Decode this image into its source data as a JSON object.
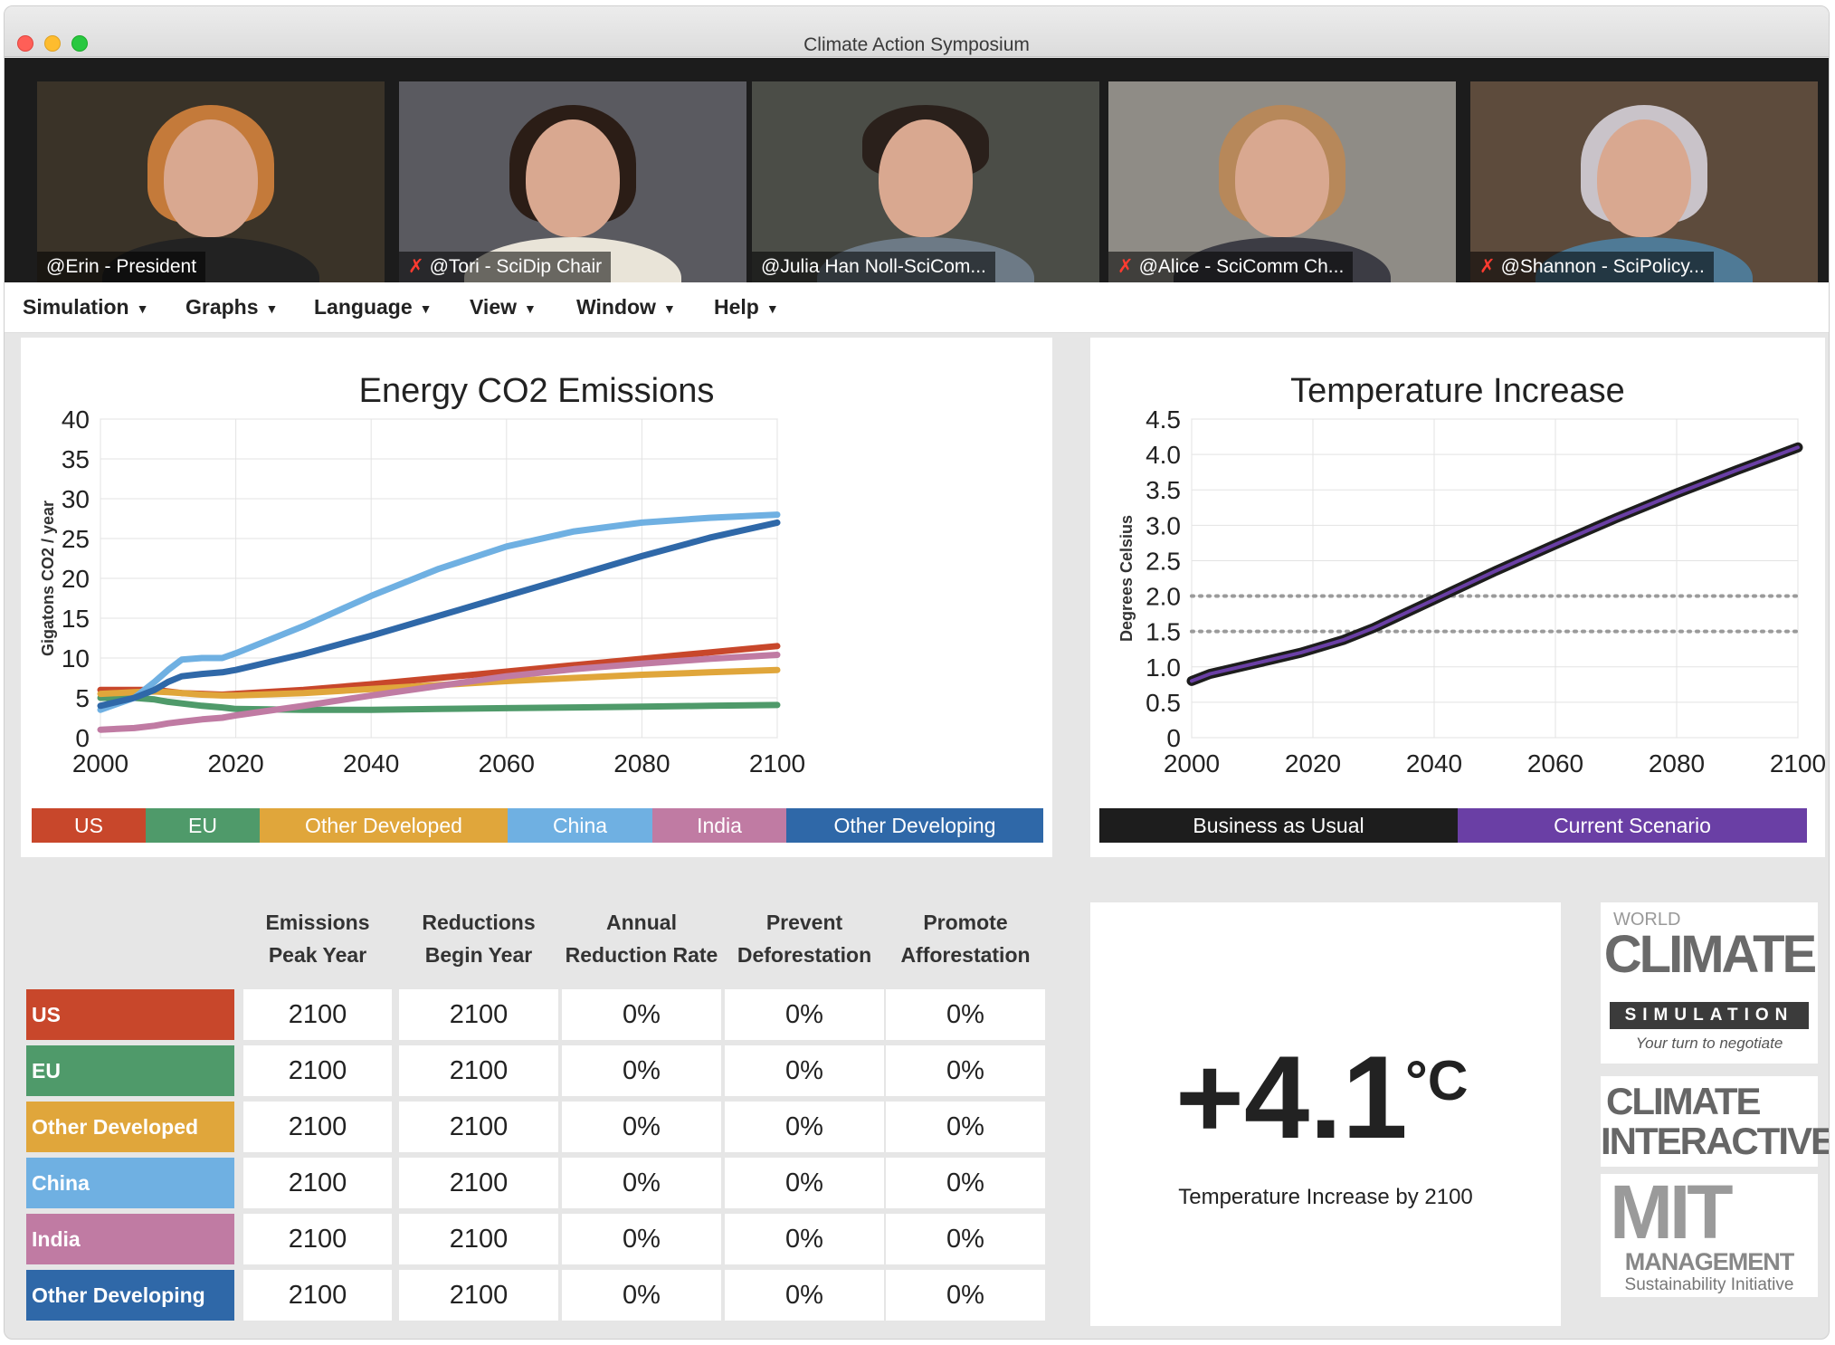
{
  "window": {
    "title": "Climate Action Symposium"
  },
  "participants": [
    {
      "label": "@Erin -  President",
      "muted": false
    },
    {
      "label": "@Tori - SciDip Chair",
      "muted": true
    },
    {
      "label": "@Julia Han Noll-SciCom...",
      "muted": false
    },
    {
      "label": "@Alice - SciComm Ch...",
      "muted": true
    },
    {
      "label": "@Shannon - SciPolicy...",
      "muted": true
    }
  ],
  "menu": [
    "Simulation",
    "Graphs",
    "Language",
    "View",
    "Window",
    "Help"
  ],
  "emissions_legend": [
    {
      "label": "US",
      "color": "#c8472b"
    },
    {
      "label": "EU",
      "color": "#4f9a6a"
    },
    {
      "label": "Other Developed",
      "color": "#e0a63b"
    },
    {
      "label": "China",
      "color": "#6fb0e2"
    },
    {
      "label": "India",
      "color": "#c07ba3"
    },
    {
      "label": "Other Developing",
      "color": "#2f68a8"
    }
  ],
  "temperature_legend": [
    {
      "label": "Business as Usual",
      "color": "#1d1d1d"
    },
    {
      "label": "Current Scenario",
      "color": "#6a3fa5"
    }
  ],
  "chart_data": [
    {
      "type": "line",
      "title": "Energy CO2 Emissions",
      "xlabel": "",
      "ylabel": "Gigatons CO2 / year",
      "xlim": [
        2000,
        2100
      ],
      "ylim": [
        0,
        40
      ],
      "xticks": [
        "2000",
        "2020",
        "2040",
        "2060",
        "2080",
        "2100"
      ],
      "yticks": [
        "0",
        "5",
        "10",
        "15",
        "20",
        "25",
        "30",
        "35",
        "40"
      ],
      "grid": true,
      "legend": "bottom",
      "x": [
        2000,
        2005,
        2008,
        2010,
        2012,
        2015,
        2018,
        2020,
        2030,
        2040,
        2050,
        2060,
        2070,
        2080,
        2090,
        2100
      ],
      "series": [
        {
          "name": "US",
          "color": "#c8472b",
          "values": [
            6,
            6,
            6,
            5.8,
            5.6,
            5.5,
            5.4,
            5.5,
            6.0,
            6.7,
            7.5,
            8.3,
            9.1,
            9.9,
            10.7,
            11.5
          ]
        },
        {
          "name": "EU",
          "color": "#4f9a6a",
          "values": [
            5,
            5,
            4.8,
            4.5,
            4.3,
            4.0,
            3.8,
            3.6,
            3.5,
            3.5,
            3.6,
            3.7,
            3.8,
            3.9,
            4.0,
            4.1
          ]
        },
        {
          "name": "Other Developed",
          "color": "#e0a63b",
          "values": [
            5.5,
            5.7,
            5.8,
            5.7,
            5.6,
            5.4,
            5.3,
            5.3,
            5.6,
            6.1,
            6.6,
            7.1,
            7.5,
            7.9,
            8.2,
            8.5
          ]
        },
        {
          "name": "China",
          "color": "#6fb0e2",
          "values": [
            3.5,
            5,
            7,
            8.5,
            9.8,
            10,
            10,
            10.6,
            14,
            17.8,
            21.2,
            24,
            25.9,
            27.0,
            27.6,
            28
          ]
        },
        {
          "name": "India",
          "color": "#c07ba3",
          "values": [
            1,
            1.2,
            1.5,
            1.8,
            2.0,
            2.3,
            2.5,
            2.8,
            4.0,
            5.3,
            6.5,
            7.7,
            8.6,
            9.3,
            9.9,
            10.4
          ]
        },
        {
          "name": "Other Developing",
          "color": "#2f68a8",
          "values": [
            4,
            5,
            6,
            7,
            7.7,
            8,
            8.2,
            8.5,
            10.5,
            12.8,
            15.3,
            17.8,
            20.3,
            22.8,
            25.1,
            27
          ]
        }
      ]
    },
    {
      "type": "line",
      "title": "Temperature Increase",
      "xlabel": "",
      "ylabel": "Degrees Celsius",
      "xlim": [
        2000,
        2100
      ],
      "ylim": [
        0,
        4.5
      ],
      "xticks": [
        "2000",
        "2020",
        "2040",
        "2060",
        "2080",
        "2100"
      ],
      "yticks": [
        "0",
        "0.5",
        "1.0",
        "1.5",
        "2.0",
        "2.5",
        "3.0",
        "3.5",
        "4.0",
        "4.5"
      ],
      "grid": true,
      "legend": "bottom",
      "reference_lines": [
        2.0,
        1.5
      ],
      "x": [
        2000,
        2003,
        2008,
        2013,
        2018,
        2025,
        2030,
        2040,
        2050,
        2060,
        2070,
        2080,
        2090,
        2100
      ],
      "series": [
        {
          "name": "Business as Usual",
          "color": "#1d1d1d",
          "values": [
            0.8,
            0.9,
            1.0,
            1.1,
            1.2,
            1.38,
            1.55,
            1.95,
            2.35,
            2.73,
            3.1,
            3.45,
            3.78,
            4.1
          ]
        },
        {
          "name": "Current Scenario",
          "color": "#6a3fa5",
          "values": [
            0.8,
            0.9,
            1.0,
            1.1,
            1.2,
            1.38,
            1.55,
            1.95,
            2.35,
            2.73,
            3.1,
            3.45,
            3.78,
            4.1
          ]
        }
      ]
    }
  ],
  "policy_table": {
    "headers": [
      [
        "Emissions",
        "Peak Year"
      ],
      [
        "Reductions",
        "Begin Year"
      ],
      [
        "Annual",
        "Reduction Rate"
      ],
      [
        "Prevent",
        "Deforestation"
      ],
      [
        "Promote",
        "Afforestation"
      ]
    ],
    "rows": [
      {
        "region": "US",
        "color": "#c8472b",
        "values": [
          "2100",
          "2100",
          "0%",
          "0%",
          "0%"
        ]
      },
      {
        "region": "EU",
        "color": "#4f9a6a",
        "values": [
          "2100",
          "2100",
          "0%",
          "0%",
          "0%"
        ]
      },
      {
        "region": "Other Developed",
        "color": "#e0a63b",
        "values": [
          "2100",
          "2100",
          "0%",
          "0%",
          "0%"
        ]
      },
      {
        "region": "China",
        "color": "#6fb0e2",
        "values": [
          "2100",
          "2100",
          "0%",
          "0%",
          "0%"
        ]
      },
      {
        "region": "India",
        "color": "#c07ba3",
        "values": [
          "2100",
          "2100",
          "0%",
          "0%",
          "0%"
        ]
      },
      {
        "region": "Other Developing",
        "color": "#2f68a8",
        "values": [
          "2100",
          "2100",
          "0%",
          "0%",
          "0%"
        ]
      }
    ]
  },
  "temperature_result": {
    "value": "+4.1",
    "unit": "°C",
    "caption": "Temperature Increase by 2100"
  },
  "logos": {
    "world_climate": {
      "top": "WORLD",
      "main": "CLIMATE",
      "sub": "SIMULATION",
      "tagline": "Your turn to negotiate"
    },
    "climate_interactive": {
      "line1": "CLIMATE",
      "line2": "INTERACTIVE"
    },
    "mit": {
      "line1": "MIT",
      "line2": "MANAGEMENT",
      "line3": "Sustainability Initiative"
    }
  }
}
